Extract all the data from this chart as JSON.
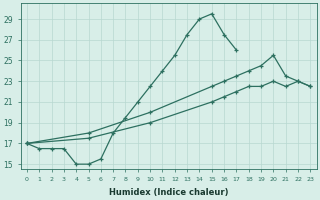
{
  "bg_color": "#d8eee8",
  "grid_color": "#b8d8d0",
  "line_color": "#2d7060",
  "xlabel": "Humidex (Indice chaleur)",
  "ylim": [
    14.5,
    30.5
  ],
  "xlim": [
    -0.5,
    23.5
  ],
  "yticks": [
    15,
    17,
    19,
    21,
    23,
    25,
    27,
    29
  ],
  "line1_x": [
    0,
    1,
    2,
    3,
    4,
    5,
    6,
    7,
    8,
    9,
    10,
    11,
    12,
    13,
    14,
    15,
    16,
    17
  ],
  "line1_y": [
    17.0,
    16.5,
    16.5,
    16.5,
    15.0,
    15.0,
    15.5,
    18.0,
    19.5,
    21.0,
    22.5,
    24.0,
    25.5,
    27.5,
    29.0,
    29.5,
    27.5,
    26.0
  ],
  "line2_x": [
    0,
    5,
    10,
    15,
    16,
    17,
    18,
    19,
    20,
    21,
    22,
    23
  ],
  "line2_y": [
    17.0,
    18.0,
    20.0,
    22.5,
    23.0,
    23.5,
    24.0,
    24.5,
    25.5,
    23.5,
    23.0,
    22.5
  ],
  "line3_x": [
    0,
    5,
    10,
    15,
    16,
    17,
    18,
    19,
    20,
    21,
    22,
    23
  ],
  "line3_y": [
    17.0,
    17.5,
    19.0,
    21.0,
    21.5,
    22.0,
    22.5,
    22.5,
    23.0,
    22.5,
    23.0,
    22.5
  ]
}
